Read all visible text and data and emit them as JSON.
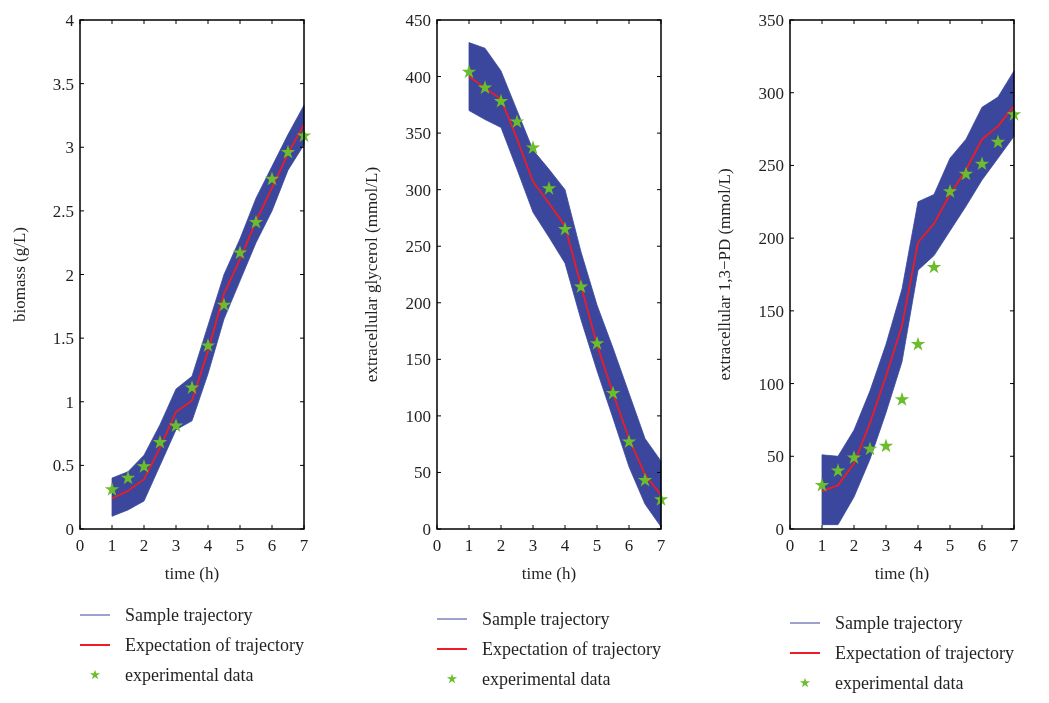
{
  "chart_data": [
    {
      "type": "line",
      "xlabel": "time (h)",
      "ylabel": "biomass (g/L)",
      "xlim": [
        0,
        7
      ],
      "xticks": [
        0,
        1,
        2,
        3,
        4,
        5,
        6,
        7
      ],
      "ylim": [
        0,
        4
      ],
      "yticks": [
        0,
        0.5,
        1,
        1.5,
        2,
        2.5,
        3,
        3.5,
        4
      ],
      "legend": "bottom",
      "annotations": [
        "Sample trajectory"
      ],
      "x": [
        1,
        1.5,
        2,
        2.5,
        3,
        3.5,
        4,
        4.5,
        5,
        5.5,
        6,
        6.5,
        7
      ],
      "series": [
        {
          "name": "Expectation of trajectory",
          "type": "line",
          "color": "#ee1c25",
          "values": [
            0.24,
            0.3,
            0.39,
            0.64,
            0.92,
            1.01,
            1.4,
            1.85,
            2.12,
            2.42,
            2.68,
            2.95,
            3.18
          ],
          "lower": [
            0.1,
            0.15,
            0.22,
            0.5,
            0.78,
            0.85,
            1.22,
            1.65,
            1.95,
            2.25,
            2.5,
            2.82,
            3.02
          ],
          "upper": [
            0.4,
            0.45,
            0.58,
            0.82,
            1.1,
            1.2,
            1.6,
            2.0,
            2.28,
            2.6,
            2.85,
            3.1,
            3.33
          ]
        },
        {
          "name": "experimental data",
          "type": "scatter",
          "marker": "star",
          "color": "#6cbd2c",
          "values": [
            0.31,
            0.4,
            0.49,
            0.68,
            0.81,
            1.11,
            1.44,
            1.76,
            2.17,
            2.41,
            2.75,
            2.96,
            3.09
          ]
        }
      ]
    },
    {
      "type": "line",
      "xlabel": "time (h)",
      "ylabel": "extracellular glycerol (mmol/L)",
      "xlim": [
        0,
        7
      ],
      "xticks": [
        0,
        1,
        2,
        3,
        4,
        5,
        6,
        7
      ],
      "ylim": [
        0,
        450
      ],
      "yticks": [
        0,
        50,
        100,
        150,
        200,
        250,
        300,
        350,
        400,
        450
      ],
      "legend": "bottom",
      "annotations": [
        "Sample trajectory"
      ],
      "x": [
        1,
        1.5,
        2,
        2.5,
        3,
        3.5,
        4,
        4.5,
        5,
        5.5,
        6,
        6.5,
        7
      ],
      "series": [
        {
          "name": "Expectation of trajectory",
          "type": "line",
          "color": "#ee1c25",
          "values": [
            400,
            390,
            380,
            345,
            307,
            288,
            268,
            215,
            163,
            120,
            80,
            48,
            30
          ],
          "lower": [
            370,
            362,
            355,
            318,
            280,
            258,
            235,
            185,
            140,
            98,
            55,
            22,
            2
          ],
          "upper": [
            430,
            425,
            405,
            370,
            335,
            318,
            300,
            245,
            198,
            160,
            120,
            80,
            60
          ]
        },
        {
          "name": "experimental data",
          "type": "scatter",
          "marker": "star",
          "color": "#6cbd2c",
          "values": [
            404,
            390,
            378,
            360,
            337,
            301,
            265,
            214,
            164,
            120,
            77,
            43,
            26
          ]
        }
      ]
    },
    {
      "type": "line",
      "xlabel": "time (h)",
      "ylabel": "extracellular 1,3−PD (mmol/L)",
      "xlim": [
        0,
        7
      ],
      "xticks": [
        0,
        1,
        2,
        3,
        4,
        5,
        6,
        7
      ],
      "ylim": [
        0,
        350
      ],
      "yticks": [
        0,
        50,
        100,
        150,
        200,
        250,
        300,
        350
      ],
      "legend": "bottom",
      "annotations": [
        "Sample trajectory"
      ],
      "x": [
        1,
        1.5,
        2,
        2.5,
        3,
        3.5,
        4,
        4.5,
        5,
        5.5,
        6,
        6.5,
        7
      ],
      "series": [
        {
          "name": "Expectation of trajectory",
          "type": "line",
          "color": "#ee1c25",
          "values": [
            26,
            30,
            45,
            73,
            105,
            140,
            197,
            210,
            230,
            247,
            268,
            277,
            291
          ],
          "lower": [
            3,
            3,
            22,
            48,
            80,
            115,
            178,
            188,
            205,
            222,
            240,
            255,
            270
          ],
          "upper": [
            51,
            50,
            68,
            95,
            127,
            165,
            225,
            230,
            255,
            268,
            290,
            297,
            315
          ]
        },
        {
          "name": "experimental data",
          "type": "scatter",
          "marker": "star",
          "color": "#6cbd2c",
          "values": [
            30,
            40,
            49,
            55,
            57,
            89,
            127,
            180,
            232,
            244,
            251,
            266,
            285
          ]
        }
      ]
    }
  ]
}
